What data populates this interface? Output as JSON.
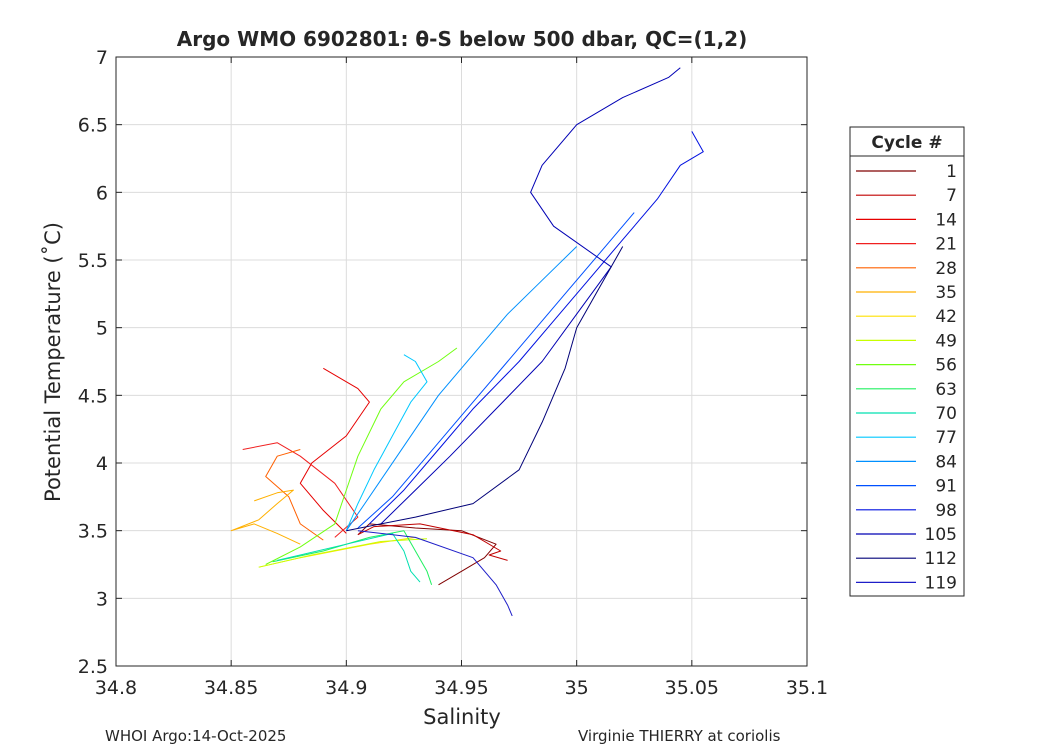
{
  "chart_data": {
    "type": "line",
    "title": "Argo WMO 6902801: θ-S below 500 dbar,  QC=(1,2)",
    "xlabel": "Salinity",
    "ylabel": "Potential Temperature (˚C)",
    "xlim": [
      34.8,
      35.1
    ],
    "ylim": [
      2.5,
      7
    ],
    "xticks": [
      "34.8",
      "34.85",
      "34.9",
      "34.95",
      "35",
      "35.05",
      "35.1"
    ],
    "xtick_values": [
      34.8,
      34.85,
      34.9,
      34.95,
      35.0,
      35.05,
      35.1
    ],
    "yticks": [
      "2.5",
      "3",
      "3.5",
      "4",
      "4.5",
      "5",
      "5.5",
      "6",
      "6.5",
      "7"
    ],
    "ytick_values": [
      2.5,
      3,
      3.5,
      4,
      4.5,
      5,
      5.5,
      6,
      6.5,
      7
    ],
    "grid": true,
    "legend": {
      "title": "Cycle #",
      "location": "right outside",
      "entries": [
        "1",
        "7",
        "14",
        "21",
        "28",
        "35",
        "42",
        "49",
        "56",
        "63",
        "70",
        "77",
        "84",
        "91",
        "98",
        "105",
        "112",
        "119"
      ]
    },
    "series": [
      {
        "name": "1",
        "color": "#800000",
        "values": [
          [
            34.905,
            3.47
          ],
          [
            34.91,
            3.55
          ],
          [
            34.93,
            3.52
          ],
          [
            34.95,
            3.5
          ],
          [
            34.965,
            3.4
          ],
          [
            34.96,
            3.3
          ],
          [
            34.95,
            3.2
          ],
          [
            34.94,
            3.1
          ]
        ]
      },
      {
        "name": "7",
        "color": "#c00000",
        "values": [
          [
            34.905,
            3.47
          ],
          [
            34.912,
            3.53
          ],
          [
            34.932,
            3.55
          ],
          [
            34.955,
            3.47
          ],
          [
            34.967,
            3.35
          ],
          [
            34.962,
            3.32
          ],
          [
            34.97,
            3.28
          ]
        ]
      },
      {
        "name": "14",
        "color": "#e60000",
        "values": [
          [
            34.9,
            3.48
          ],
          [
            34.89,
            3.65
          ],
          [
            34.88,
            3.85
          ],
          [
            34.885,
            4.0
          ],
          [
            34.9,
            4.2
          ],
          [
            34.91,
            4.45
          ],
          [
            34.905,
            4.55
          ],
          [
            34.89,
            4.7
          ]
        ]
      },
      {
        "name": "21",
        "color": "#f02020",
        "values": [
          [
            34.895,
            3.45
          ],
          [
            34.905,
            3.6
          ],
          [
            34.895,
            3.85
          ],
          [
            34.88,
            4.05
          ],
          [
            34.87,
            4.15
          ],
          [
            34.855,
            4.1
          ]
        ]
      },
      {
        "name": "28",
        "color": "#ff6000",
        "values": [
          [
            34.89,
            3.43
          ],
          [
            34.88,
            3.55
          ],
          [
            34.875,
            3.75
          ],
          [
            34.865,
            3.9
          ],
          [
            34.87,
            4.05
          ],
          [
            34.88,
            4.1
          ]
        ]
      },
      {
        "name": "35",
        "color": "#ffb000",
        "values": [
          [
            34.88,
            3.4
          ],
          [
            34.87,
            3.48
          ],
          [
            34.86,
            3.55
          ],
          [
            34.85,
            3.5
          ],
          [
            34.862,
            3.58
          ],
          [
            34.87,
            3.7
          ],
          [
            34.877,
            3.8
          ],
          [
            34.87,
            3.78
          ],
          [
            34.86,
            3.72
          ]
        ]
      },
      {
        "name": "42",
        "color": "#ffe000",
        "values": [
          [
            34.862,
            3.23
          ],
          [
            34.88,
            3.3
          ],
          [
            34.91,
            3.4
          ],
          [
            34.93,
            3.45
          ]
        ]
      },
      {
        "name": "49",
        "color": "#c8ff00",
        "values": [
          [
            34.862,
            3.23
          ],
          [
            34.885,
            3.32
          ],
          [
            34.915,
            3.42
          ],
          [
            34.935,
            3.44
          ]
        ]
      },
      {
        "name": "56",
        "color": "#70ff10",
        "values": [
          [
            34.865,
            3.25
          ],
          [
            34.88,
            3.38
          ],
          [
            34.895,
            3.55
          ],
          [
            34.9,
            3.8
          ],
          [
            34.905,
            4.05
          ],
          [
            34.915,
            4.4
          ],
          [
            34.925,
            4.6
          ],
          [
            34.94,
            4.75
          ],
          [
            34.948,
            4.85
          ]
        ]
      },
      {
        "name": "63",
        "color": "#20f060",
        "values": [
          [
            34.868,
            3.27
          ],
          [
            34.89,
            3.35
          ],
          [
            34.91,
            3.45
          ],
          [
            34.925,
            3.5
          ],
          [
            34.93,
            3.35
          ],
          [
            34.935,
            3.2
          ],
          [
            34.937,
            3.1
          ]
        ]
      },
      {
        "name": "70",
        "color": "#00e0b0",
        "values": [
          [
            34.87,
            3.28
          ],
          [
            34.9,
            3.4
          ],
          [
            34.92,
            3.48
          ],
          [
            34.925,
            3.35
          ],
          [
            34.928,
            3.2
          ],
          [
            34.932,
            3.12
          ]
        ]
      },
      {
        "name": "77",
        "color": "#00c8ff",
        "values": [
          [
            34.9,
            3.5
          ],
          [
            34.905,
            3.7
          ],
          [
            34.912,
            3.95
          ],
          [
            34.92,
            4.2
          ],
          [
            34.928,
            4.45
          ],
          [
            34.935,
            4.6
          ],
          [
            34.93,
            4.75
          ],
          [
            34.925,
            4.8
          ]
        ]
      },
      {
        "name": "84",
        "color": "#0090ff",
        "values": [
          [
            34.9,
            3.5
          ],
          [
            34.908,
            3.7
          ],
          [
            34.918,
            3.95
          ],
          [
            34.93,
            4.25
          ],
          [
            34.94,
            4.5
          ],
          [
            34.955,
            4.8
          ],
          [
            34.97,
            5.1
          ],
          [
            34.985,
            5.35
          ],
          [
            35.0,
            5.6
          ]
        ]
      },
      {
        "name": "91",
        "color": "#0050ff",
        "values": [
          [
            34.905,
            3.52
          ],
          [
            34.92,
            3.75
          ],
          [
            34.935,
            4.05
          ],
          [
            34.95,
            4.35
          ],
          [
            34.965,
            4.65
          ],
          [
            34.98,
            4.95
          ],
          [
            34.995,
            5.25
          ],
          [
            35.01,
            5.55
          ],
          [
            35.025,
            5.85
          ]
        ]
      },
      {
        "name": "98",
        "color": "#0010e0",
        "values": [
          [
            34.91,
            3.55
          ],
          [
            34.925,
            3.8
          ],
          [
            34.94,
            4.1
          ],
          [
            34.955,
            4.4
          ],
          [
            34.975,
            4.75
          ],
          [
            34.99,
            5.05
          ],
          [
            35.005,
            5.35
          ],
          [
            35.02,
            5.65
          ],
          [
            35.035,
            5.95
          ],
          [
            35.045,
            6.2
          ],
          [
            35.055,
            6.3
          ],
          [
            35.05,
            6.45
          ]
        ]
      },
      {
        "name": "105",
        "color": "#0000b4",
        "values": [
          [
            34.915,
            3.55
          ],
          [
            34.93,
            3.8
          ],
          [
            34.945,
            4.05
          ],
          [
            34.965,
            4.4
          ],
          [
            34.985,
            4.75
          ],
          [
            35.0,
            5.1
          ],
          [
            35.015,
            5.45
          ],
          [
            34.99,
            5.75
          ],
          [
            34.98,
            6.0
          ],
          [
            34.985,
            6.2
          ],
          [
            35.0,
            6.5
          ],
          [
            35.02,
            6.7
          ],
          [
            35.04,
            6.85
          ],
          [
            35.045,
            6.92
          ]
        ]
      },
      {
        "name": "112",
        "color": "#000078",
        "values": [
          [
            34.9,
            3.5
          ],
          [
            34.93,
            3.6
          ],
          [
            34.955,
            3.7
          ],
          [
            34.975,
            3.95
          ],
          [
            34.985,
            4.3
          ],
          [
            34.995,
            4.7
          ],
          [
            35.0,
            5.0
          ],
          [
            35.01,
            5.3
          ],
          [
            35.02,
            5.6
          ]
        ]
      },
      {
        "name": "119",
        "color": "#1e1ec8",
        "values": [
          [
            34.905,
            3.5
          ],
          [
            34.93,
            3.45
          ],
          [
            34.955,
            3.3
          ],
          [
            34.965,
            3.1
          ],
          [
            34.97,
            2.95
          ],
          [
            34.972,
            2.87
          ]
        ]
      }
    ]
  },
  "footer": {
    "left": "WHOI Argo:14-Oct-2025",
    "right": "Virginie THIERRY at coriolis"
  }
}
